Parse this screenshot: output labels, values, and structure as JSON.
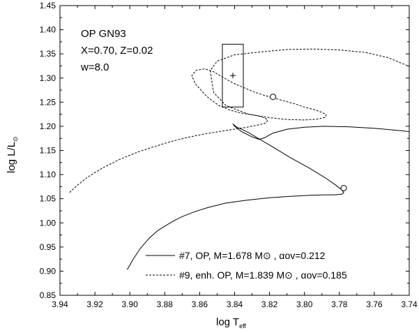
{
  "chart_data": {
    "type": "line",
    "xlabel": {
      "main": "log T",
      "sub": "eff"
    },
    "ylabel": {
      "main": "log L/L",
      "sub": "⊙"
    },
    "xlim": [
      3.94,
      3.74
    ],
    "ylim": [
      0.85,
      1.45
    ],
    "x_ticks": [
      "3.94",
      "3.92",
      "3.90",
      "3.88",
      "3.86",
      "3.84",
      "3.82",
      "3.80",
      "3.78",
      "3.76",
      "3.74"
    ],
    "y_ticks": [
      "0.85",
      "0.90",
      "0.95",
      "1.00",
      "1.05",
      "1.10",
      "1.15",
      "1.20",
      "1.25",
      "1.30",
      "1.35",
      "1.40",
      "1.45"
    ],
    "grid": false,
    "annotations": [
      "OP GN93",
      "X=0.70, Z=0.02",
      "w=8.0"
    ],
    "series": [
      {
        "name": "#7, OP, M=1.678 M⊙ , αov=0.212",
        "style": "solid",
        "x": [
          3.9015,
          3.898,
          3.894,
          3.889,
          3.884,
          3.88,
          3.876,
          3.87,
          3.863,
          3.855,
          3.845,
          3.833,
          3.82,
          3.808,
          3.797,
          3.789,
          3.783,
          3.779,
          3.7775,
          3.7785,
          3.782,
          3.788,
          3.797,
          3.808,
          3.818,
          3.826,
          3.832,
          3.836,
          3.838,
          3.8395,
          3.841,
          3.84,
          3.836,
          3.83,
          3.826,
          3.823,
          3.818,
          3.81,
          3.8,
          3.789,
          3.775,
          3.76,
          3.745,
          3.74
        ],
        "y": [
          0.903,
          0.925,
          0.947,
          0.968,
          0.984,
          0.993,
          1.002,
          1.013,
          1.023,
          1.032,
          1.041,
          1.047,
          1.052,
          1.055,
          1.057,
          1.058,
          1.058,
          1.059,
          1.062,
          1.068,
          1.078,
          1.093,
          1.113,
          1.135,
          1.157,
          1.174,
          1.187,
          1.194,
          1.197,
          1.2,
          1.205,
          1.2,
          1.189,
          1.178,
          1.173,
          1.176,
          1.186,
          1.194,
          1.198,
          1.2,
          1.199,
          1.196,
          1.191,
          1.189
        ]
      },
      {
        "name": "#9, enh. OP, M=1.839 M⊙ , αov=0.185",
        "style": "dashed",
        "x": [
          3.9345,
          3.93,
          3.924,
          3.916,
          3.906,
          3.896,
          3.887,
          3.877,
          3.867,
          3.856,
          3.844,
          3.833,
          3.826,
          3.822,
          3.821,
          3.823,
          3.826,
          3.83,
          3.834,
          3.838,
          3.843,
          3.849,
          3.856,
          3.8625,
          3.8645,
          3.862,
          3.857,
          3.852,
          3.846,
          3.84,
          3.834,
          3.828,
          3.822,
          3.818,
          3.812,
          3.806,
          3.8,
          3.794,
          3.79,
          3.7875,
          3.788,
          3.792,
          3.8,
          3.81,
          3.82,
          3.832,
          3.845,
          3.852,
          3.854,
          3.85,
          3.84,
          3.825,
          3.81,
          3.795,
          3.78,
          3.765,
          3.752,
          3.74
        ],
        "y": [
          1.063,
          1.078,
          1.095,
          1.113,
          1.131,
          1.146,
          1.157,
          1.168,
          1.177,
          1.185,
          1.192,
          1.198,
          1.203,
          1.207,
          1.213,
          1.218,
          1.221,
          1.224,
          1.226,
          1.229,
          1.234,
          1.243,
          1.262,
          1.288,
          1.305,
          1.316,
          1.319,
          1.313,
          1.3,
          1.288,
          1.279,
          1.27,
          1.263,
          1.259,
          1.253,
          1.247,
          1.24,
          1.234,
          1.229,
          1.224,
          1.219,
          1.215,
          1.213,
          1.214,
          1.218,
          1.225,
          1.243,
          1.27,
          1.315,
          1.335,
          1.348,
          1.354,
          1.359,
          1.36,
          1.358,
          1.353,
          1.342,
          1.324
        ]
      }
    ],
    "box": {
      "x": [
        3.847,
        3.835
      ],
      "y": [
        1.24,
        1.37
      ]
    },
    "center_marker": {
      "x": 3.841,
      "y": 1.305
    },
    "circles": [
      {
        "x": 3.818,
        "y": 1.261
      },
      {
        "x": 3.7775,
        "y": 1.072
      }
    ],
    "legend_placement": "bottom-right"
  }
}
